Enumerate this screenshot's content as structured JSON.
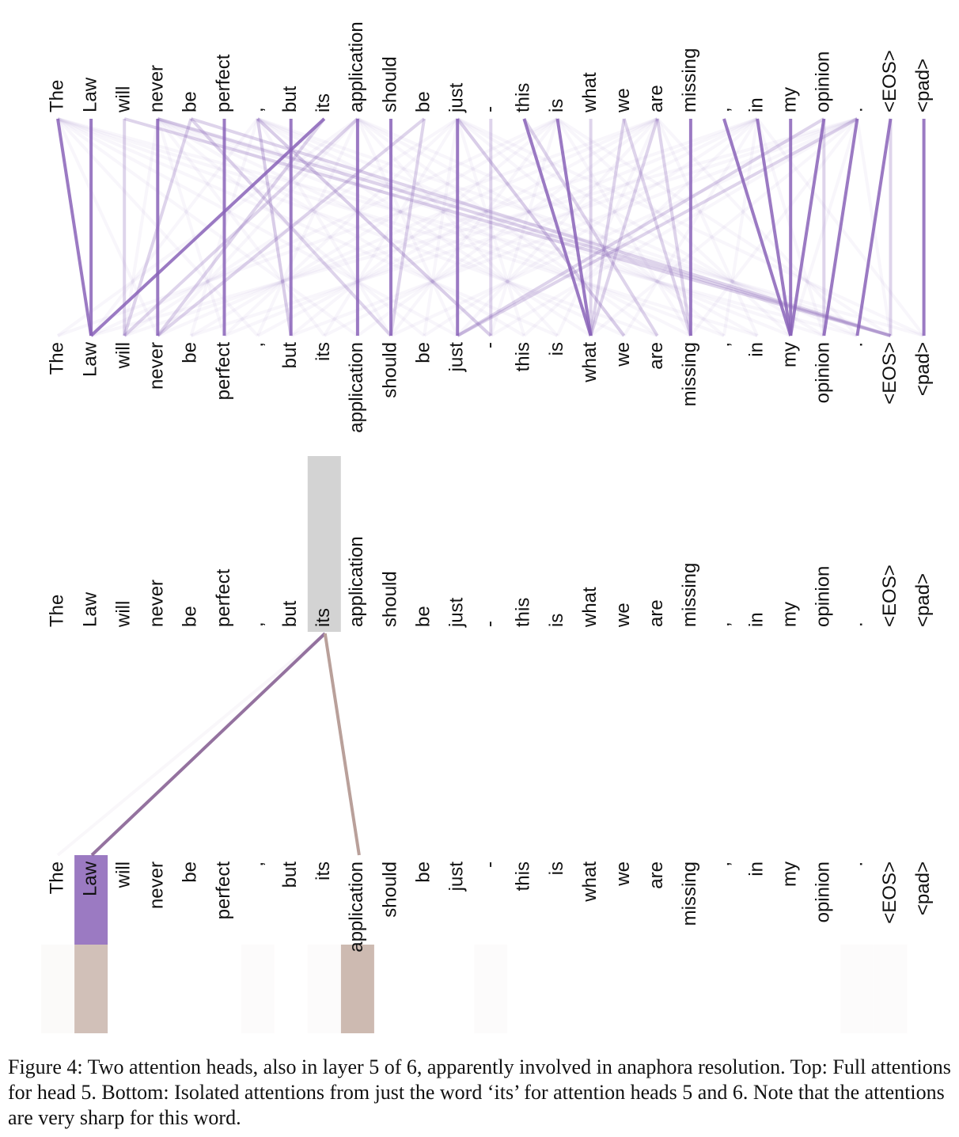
{
  "tokens": [
    "The",
    "Law",
    "will",
    "never",
    "be",
    "perfect",
    ",",
    "but",
    "its",
    "application",
    "should",
    "be",
    "just",
    "-",
    "this",
    "is",
    "what",
    "we",
    "are",
    "missing",
    ",",
    "in",
    "my",
    "opinion",
    ".",
    "<EOS>",
    "<pad>"
  ],
  "selected_token": "its",
  "colors": {
    "head5": "#8a63b8",
    "head6": "#a88878",
    "selected_bg": "#d3d3d3",
    "bottom_law": "#9b79c4",
    "bottom_law_head6": "#cbb8b3",
    "bottom_app_head6": "#c0a9a0"
  },
  "top_attention": {
    "strong_links": [
      [
        0,
        1
      ],
      [
        1,
        1
      ],
      [
        8,
        1
      ],
      [
        3,
        3
      ],
      [
        5,
        5
      ],
      [
        7,
        7
      ],
      [
        9,
        9
      ],
      [
        10,
        10
      ],
      [
        12,
        12
      ],
      [
        19,
        19
      ],
      [
        26,
        26
      ],
      [
        20,
        22
      ],
      [
        21,
        22
      ],
      [
        22,
        22
      ],
      [
        15,
        16
      ],
      [
        14,
        16
      ],
      [
        25,
        24
      ],
      [
        23,
        22
      ],
      [
        24,
        23
      ]
    ],
    "medium_links": [
      [
        2,
        2
      ],
      [
        4,
        2
      ],
      [
        6,
        7
      ],
      [
        11,
        10
      ],
      [
        13,
        13
      ],
      [
        16,
        16
      ],
      [
        17,
        16
      ],
      [
        18,
        16
      ],
      [
        23,
        23
      ],
      [
        25,
        25
      ],
      [
        4,
        25
      ],
      [
        2,
        25
      ],
      [
        3,
        25
      ],
      [
        11,
        3
      ],
      [
        24,
        12
      ],
      [
        18,
        19
      ],
      [
        17,
        19
      ],
      [
        23,
        12
      ],
      [
        6,
        13
      ],
      [
        4,
        10
      ],
      [
        8,
        3
      ],
      [
        9,
        2
      ],
      [
        14,
        18
      ],
      [
        12,
        17
      ]
    ]
  },
  "isolated_attention": {
    "from_token": "its",
    "head5_targets": [
      {
        "token": "Law",
        "weight": 0.95
      },
      {
        "token": "The",
        "weight": 0.05
      }
    ],
    "head6_targets": [
      {
        "token": "Law",
        "weight": 0.5
      },
      {
        "token": "application",
        "weight": 0.55
      }
    ],
    "head5_bars": {
      "Law": 0.95
    },
    "head6_bars": {
      "The": 0.04,
      "Law": 0.5,
      ",": 0.03,
      "its": 0.03,
      "application": 0.55,
      "-": 0.03,
      ".": 0.03,
      "<EOS>": 0.03
    }
  },
  "caption": {
    "text": "Figure 4: Two attention heads, also in layer 5 of 6, apparently involved in anaphora resolution. Top: Full attentions for head 5. Bottom: Isolated attentions from just the word ‘its’ for attention heads 5 and 6. Note that the attentions are very sharp for this word."
  }
}
